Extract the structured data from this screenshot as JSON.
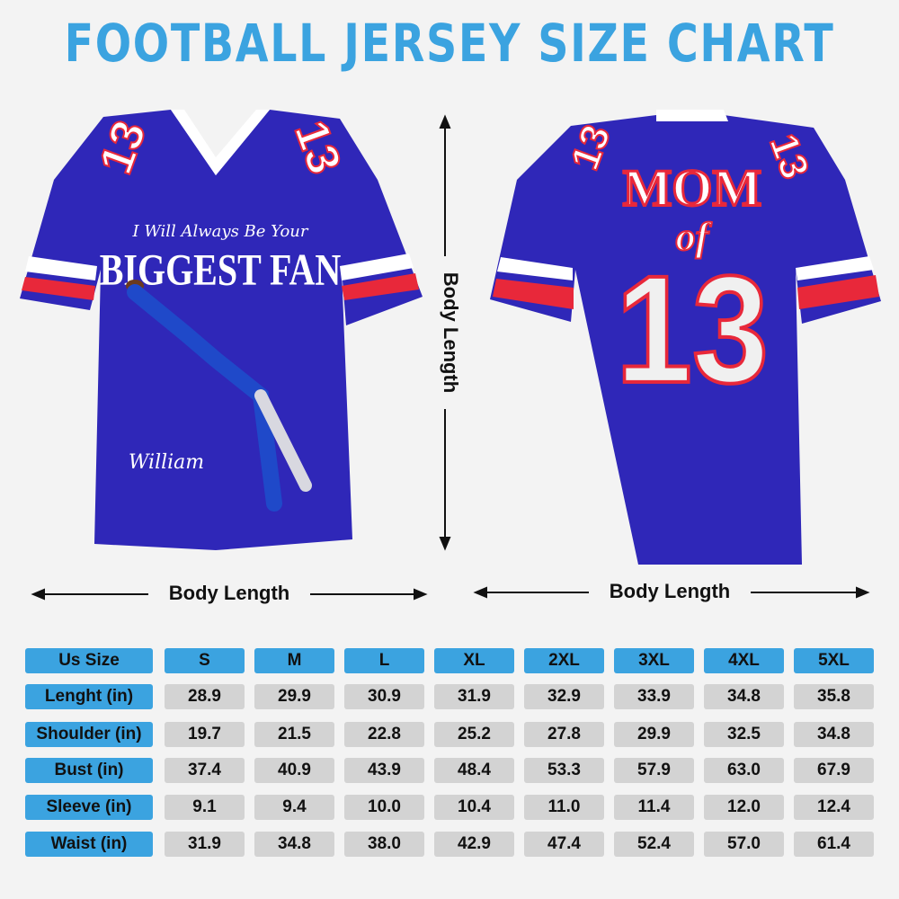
{
  "header": {
    "title": "FOOTBALL JERSEY SIZE CHART"
  },
  "front": {
    "number": "13",
    "tagline": "I Will Always Be Your",
    "headline": "BIGGEST FAN",
    "signature": "William"
  },
  "back": {
    "line1": "MOM",
    "line2": "of",
    "number": "13"
  },
  "measures": {
    "vertical": "Body Length",
    "front_width": "Body Length",
    "back_width": "Body Length"
  },
  "table": {
    "header": [
      "Us Size",
      "S",
      "M",
      "L",
      "XL",
      "2XL",
      "3XL",
      "4XL",
      "5XL"
    ],
    "rows": [
      [
        "Lenght (in)",
        "28.9",
        "29.9",
        "30.9",
        "31.9",
        "32.9",
        "33.9",
        "34.8",
        "35.8"
      ],
      [
        "Shoulder (in)",
        "19.7",
        "21.5",
        "22.8",
        "25.2",
        "27.8",
        "29.9",
        "32.5",
        "34.8"
      ],
      [
        "Bust (in)",
        "37.4",
        "40.9",
        "43.9",
        "48.4",
        "53.3",
        "57.9",
        "63.0",
        "67.9"
      ],
      [
        "Sleeve (in)",
        "9.1",
        "9.4",
        "10.0",
        "10.4",
        "11.0",
        "11.4",
        "12.0",
        "12.4"
      ],
      [
        "Waist (in)",
        "31.9",
        "34.8",
        "38.0",
        "42.9",
        "47.4",
        "52.4",
        "57.0",
        "61.4"
      ]
    ]
  }
}
